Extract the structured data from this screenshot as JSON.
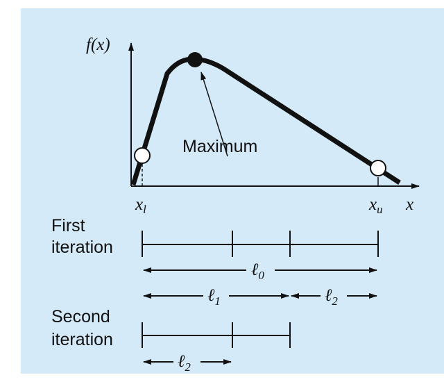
{
  "labels": {
    "y_axis": "f(x)",
    "x_axis": "x",
    "x_lower": "x",
    "x_lower_sub": "l",
    "x_upper": "x",
    "x_upper_sub": "u",
    "maximum": "Maximum",
    "first_1": "First",
    "first_2": "iteration",
    "second_1": "Second",
    "second_2": "iteration",
    "l0": "ℓ",
    "l0_sub": "0",
    "l1": "ℓ",
    "l1_sub": "1",
    "l2a": "ℓ",
    "l2a_sub": "2",
    "l2b": "ℓ",
    "l2b_sub": "2"
  },
  "colors": {
    "background": "#d4eaf9",
    "ink": "#111111"
  }
}
